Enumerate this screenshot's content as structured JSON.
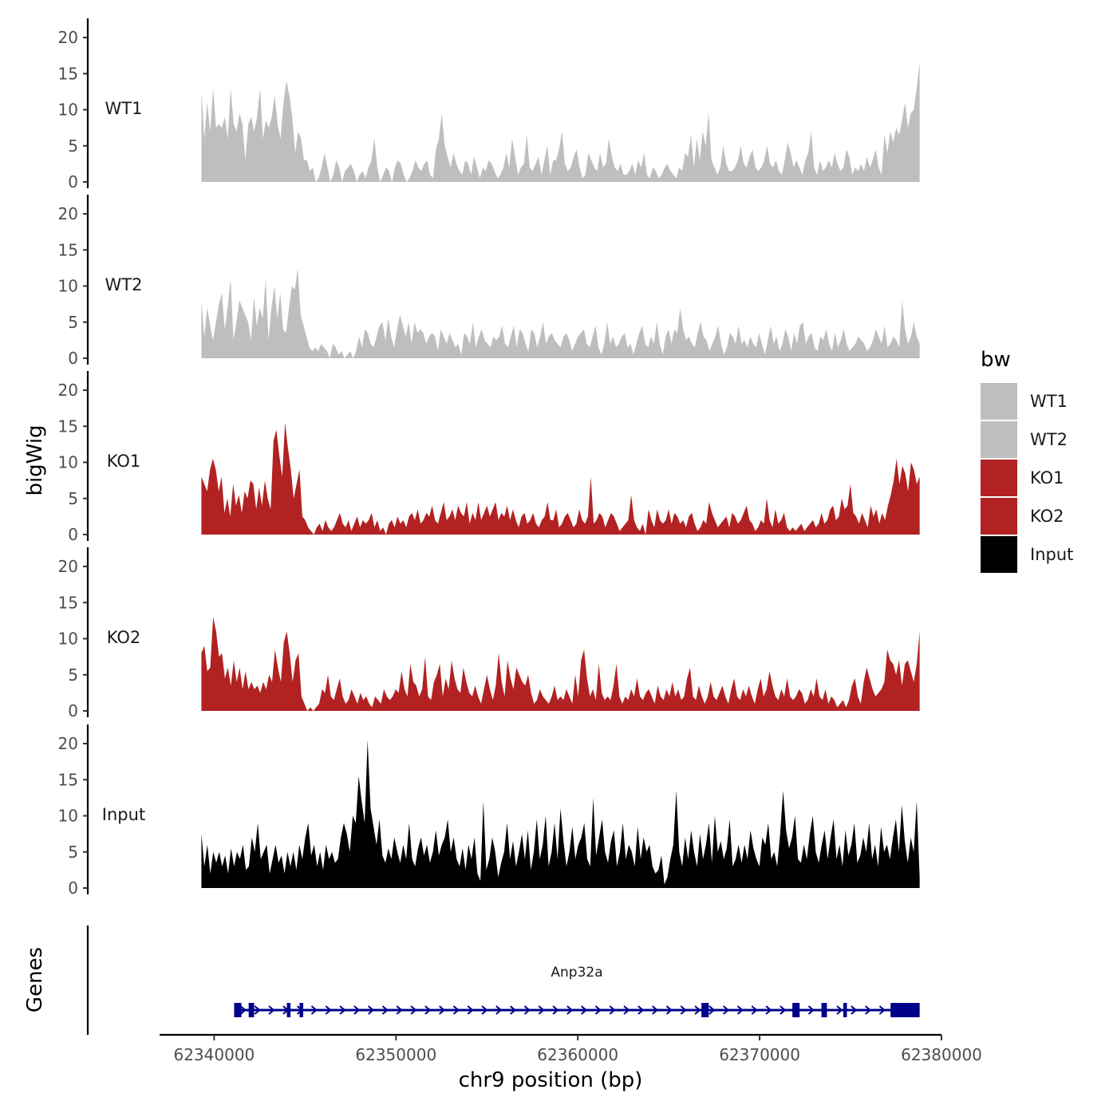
{
  "chart_data": {
    "type": "area",
    "chromosome": "chr9",
    "xlabel": "chr9 position (bp)",
    "ylabel": "bigWig",
    "genes_label": "Genes",
    "xlim": [
      62337000,
      62380000
    ],
    "data_range": [
      62339300,
      62378800
    ],
    "ylim": [
      0,
      21
    ],
    "xticks": [
      62340000,
      62350000,
      62360000,
      62370000,
      62380000
    ],
    "xtick_labels": [
      "62340000",
      "62350000",
      "62360000",
      "62370000",
      "62380000"
    ],
    "yticks": [
      0,
      5,
      10,
      15,
      20
    ],
    "ytick_labels": [
      "0",
      "5",
      "10",
      "15",
      "20"
    ],
    "legend": {
      "title": "bw",
      "entries": [
        {
          "label": "WT1",
          "color": "#bebebe"
        },
        {
          "label": "WT2",
          "color": "#bebebe"
        },
        {
          "label": "KO1",
          "color": "#b22222"
        },
        {
          "label": "KO2",
          "color": "#b22222"
        },
        {
          "label": "Input",
          "color": "#000000"
        }
      ]
    },
    "series": [
      {
        "name": "WT1",
        "color": "#bebebe",
        "values": [
          12.5,
          6,
          11,
          7,
          13,
          7.5,
          8,
          7.5,
          9,
          6,
          13,
          8,
          7,
          9.5,
          8,
          3,
          8,
          9,
          7,
          9,
          13,
          6,
          8.5,
          7.5,
          9,
          12,
          8,
          6,
          11,
          14,
          12,
          9,
          4,
          7,
          6,
          3,
          3,
          1.5,
          2,
          0,
          0.5,
          2,
          4,
          2,
          0,
          1,
          3,
          2,
          0,
          1.5,
          2,
          2.5,
          1.5,
          0,
          1,
          1.5,
          0.5,
          2,
          3,
          6,
          2,
          0,
          1,
          2,
          1.5,
          0,
          2,
          3,
          2.5,
          1,
          0,
          0.5,
          1.5,
          3,
          2,
          1.5,
          2.5,
          3,
          1,
          0.5,
          4.5,
          6,
          9.5,
          5,
          3.5,
          2,
          4,
          2.5,
          1.5,
          1,
          3,
          2.5,
          1,
          3.5,
          2,
          0.5,
          2,
          1.5,
          3,
          2.5,
          1.5,
          0.5,
          1,
          2,
          4,
          2,
          6,
          3.5,
          1,
          2,
          2.5,
          6.5,
          2,
          1.5,
          2.5,
          3.5,
          1,
          3,
          5,
          1,
          3,
          3,
          4.5,
          7,
          2.5,
          1.5,
          2,
          3.5,
          4.5,
          2,
          0.5,
          1,
          4,
          3,
          2,
          1.5,
          4,
          2,
          2.5,
          6,
          3.5,
          2,
          1.5,
          2.5,
          1,
          1,
          1.5,
          2.5,
          1,
          3,
          2,
          4,
          1,
          0.5,
          2,
          1.5,
          0.5,
          1,
          2,
          2.5,
          1.5,
          1,
          0.5,
          2,
          1.5,
          4,
          3.5,
          6.5,
          2,
          6,
          3,
          7,
          5,
          9.5,
          3,
          2,
          1,
          2,
          5,
          2.5,
          1.5,
          1.5,
          2,
          3,
          5,
          2.5,
          2,
          3.5,
          4.5,
          2,
          1.5,
          2,
          3,
          5,
          2.5,
          2,
          3,
          1.5,
          1,
          3,
          5.5,
          4,
          2,
          3,
          2,
          1,
          3,
          4,
          7,
          2,
          1,
          3,
          1.5,
          2,
          3,
          2,
          4,
          2.5,
          1.5,
          2,
          4.5,
          3.5,
          1,
          2,
          1.5,
          2.5,
          1.5,
          3.5,
          2,
          3,
          4.5,
          2,
          1,
          6.5,
          4,
          7,
          5.5,
          7.5,
          6.5,
          8.5,
          11,
          7.5,
          9.5,
          10,
          13,
          16.5
        ]
      },
      {
        "name": "WT2",
        "color": "#bebebe",
        "values": [
          8,
          3,
          7,
          4.5,
          2.5,
          5,
          7.5,
          9,
          4,
          7,
          11,
          2.5,
          5,
          8,
          7,
          6,
          5,
          2.5,
          8.5,
          4.5,
          7,
          5.5,
          11,
          2.5,
          7,
          10,
          5.5,
          9,
          4,
          3.5,
          7,
          10,
          9.5,
          12.5,
          6,
          4.5,
          3,
          1.5,
          1,
          1.5,
          1,
          2,
          1.5,
          1,
          0,
          2,
          1.5,
          0.5,
          1,
          0,
          0.5,
          1,
          0,
          1,
          3,
          1.5,
          4,
          3.5,
          2,
          1.5,
          3,
          4.5,
          5,
          2.5,
          5.5,
          3,
          1.5,
          4,
          6,
          4.5,
          3,
          5,
          2,
          5,
          3.5,
          4,
          3.5,
          2,
          3,
          3.5,
          3,
          1,
          4,
          3,
          2,
          3.5,
          2.5,
          1.5,
          2,
          0.5,
          3.5,
          3,
          2,
          5,
          1.5,
          3,
          4,
          2.5,
          2,
          1.5,
          3,
          2.5,
          3,
          4.5,
          2,
          1.5,
          3,
          4.5,
          1.5,
          4,
          3.5,
          2,
          1,
          4,
          3.5,
          1.5,
          3,
          5,
          2,
          3,
          3.5,
          2.5,
          2,
          1.5,
          3,
          3.5,
          2.5,
          1,
          2,
          3,
          3.5,
          4,
          2,
          1.5,
          3,
          4.5,
          1.5,
          0.5,
          2,
          5,
          2,
          3,
          1.5,
          2,
          3,
          3.5,
          1.5,
          2,
          0.5,
          2,
          3.5,
          4.5,
          2,
          1.5,
          3,
          2,
          5,
          2,
          0.5,
          3,
          4,
          2,
          4,
          3.5,
          7,
          4,
          2.5,
          3,
          2,
          1.5,
          3.5,
          5,
          3,
          2.5,
          1,
          2,
          3,
          4.5,
          2,
          0.5,
          1.5,
          3.5,
          3,
          2,
          4.5,
          2,
          2.5,
          1.5,
          3,
          2,
          1.5,
          3.5,
          2,
          0.5,
          2.5,
          4.5,
          2,
          3,
          1,
          2,
          4,
          3,
          1,
          3.5,
          2,
          4.5,
          5,
          2,
          3,
          3.5,
          1.5,
          1,
          3,
          2.5,
          4,
          2,
          1,
          3.5,
          1.5,
          2.5,
          4,
          2,
          1,
          1.5,
          2,
          3,
          2.5,
          2,
          1,
          1.5,
          2.5,
          4,
          3,
          2,
          4.5,
          1.5,
          2,
          3,
          2.5,
          1.5,
          8,
          4,
          2,
          3,
          5,
          3,
          2
        ]
      },
      {
        "name": "KO1",
        "color": "#b22222",
        "values": [
          8,
          7,
          6,
          9,
          10.5,
          9,
          6,
          8,
          3,
          5,
          2.5,
          7,
          4,
          5.5,
          3,
          6,
          5,
          7.5,
          7,
          3.5,
          6.5,
          4,
          7.5,
          5,
          3.5,
          13,
          14.5,
          11,
          8,
          15.5,
          12,
          9,
          5,
          7,
          9,
          2.5,
          2,
          1,
          0.5,
          0,
          1,
          1.5,
          0.5,
          2,
          1,
          0.5,
          1,
          2,
          3,
          1.5,
          1,
          2,
          0.5,
          1.5,
          2.5,
          1,
          2,
          1.5,
          2,
          3,
          1,
          2,
          0.5,
          1,
          0,
          1.5,
          2,
          1,
          2.5,
          1.5,
          2,
          1,
          2.5,
          3,
          2,
          3.5,
          1.5,
          2,
          3,
          2.5,
          4,
          2,
          1.5,
          3,
          4.5,
          2,
          2.5,
          3.5,
          2,
          4,
          3,
          2.5,
          4.5,
          1.5,
          3,
          2,
          4.5,
          2,
          3,
          4,
          2.5,
          3.5,
          4.5,
          2,
          3,
          2.5,
          4,
          2,
          3.5,
          2,
          1,
          2.5,
          3,
          1.5,
          2,
          3,
          1.5,
          1,
          2,
          2.5,
          4.5,
          2,
          2,
          3.5,
          1,
          1.5,
          2.5,
          3,
          2,
          1,
          1.5,
          3.5,
          2,
          1.5,
          2.5,
          8,
          1.5,
          2,
          3,
          2.5,
          1,
          2,
          3,
          2.5,
          1.5,
          0.5,
          1,
          1.5,
          2,
          5.5,
          2,
          1,
          0.5,
          1.5,
          0,
          3.5,
          2,
          1,
          3.5,
          2,
          1.5,
          2,
          3.5,
          1.5,
          3,
          2.5,
          1.5,
          2,
          1,
          2.5,
          3,
          1.5,
          0.5,
          1,
          2,
          1.5,
          4.5,
          3,
          2,
          1,
          1.5,
          2,
          2.5,
          1,
          3,
          2.5,
          1.5,
          2,
          3,
          4,
          2,
          1.5,
          0.5,
          1,
          2,
          1.5,
          5,
          2,
          1,
          3.5,
          1.5,
          2,
          3,
          1,
          0.5,
          1,
          0.5,
          1,
          1.5,
          0.5,
          1,
          1.5,
          2,
          1,
          1.5,
          3,
          1.5,
          2,
          3.5,
          4,
          2,
          2.5,
          5,
          3.5,
          4,
          7,
          3,
          2.5,
          1.5,
          3,
          2,
          1,
          4,
          2.5,
          3.5,
          1.5,
          3,
          2,
          4,
          5.5,
          7.5,
          10.5,
          7,
          9.5,
          8.5,
          6,
          10,
          9,
          7,
          8
        ]
      },
      {
        "name": "KO2",
        "color": "#b22222",
        "values": [
          8,
          9,
          5.5,
          6,
          13,
          11,
          7.5,
          8,
          4.5,
          6,
          3.5,
          7,
          4,
          6,
          3,
          5.5,
          3,
          4,
          3,
          3.5,
          2.5,
          4,
          3,
          5,
          4,
          8.5,
          6,
          4,
          9.5,
          11,
          8,
          4,
          7,
          8,
          2,
          1,
          0,
          0.5,
          0,
          0.5,
          1,
          3,
          2.5,
          5,
          2,
          1.5,
          3,
          4.5,
          2,
          1,
          1.5,
          3,
          2,
          1,
          2.5,
          1.5,
          2,
          1,
          0.5,
          2,
          1.5,
          1,
          3,
          2,
          1.5,
          2,
          3,
          2.5,
          5.5,
          3,
          2,
          6.5,
          4,
          3.5,
          2,
          3,
          7.5,
          2,
          1.5,
          4,
          5,
          6.5,
          2,
          4.5,
          3,
          7,
          4.5,
          3,
          2.5,
          6,
          4,
          2.5,
          2,
          3.5,
          2,
          1,
          3,
          5,
          3,
          1.5,
          3.5,
          8,
          4,
          2,
          7,
          4.5,
          3,
          6,
          5,
          4,
          3.5,
          5,
          2.5,
          1,
          1.5,
          3,
          2,
          1.5,
          1,
          2,
          3.5,
          1.5,
          2,
          1.5,
          3,
          2,
          1,
          5,
          2,
          7,
          8.5,
          4.5,
          2,
          3,
          1.5,
          6.5,
          2.5,
          1.5,
          2,
          1.5,
          3.5,
          6.5,
          2,
          1,
          2,
          1.5,
          3,
          2,
          4.5,
          2,
          1.5,
          2.5,
          3,
          2,
          1,
          3.5,
          2,
          1.5,
          3,
          2,
          4,
          2,
          3,
          1.5,
          2,
          4.5,
          6,
          2,
          1.5,
          3.5,
          2,
          1,
          2,
          4,
          2,
          1.5,
          2.5,
          3.5,
          2,
          1,
          3,
          4.5,
          2,
          1.5,
          3,
          2,
          3.5,
          2,
          1,
          3,
          4.5,
          2,
          3,
          5.5,
          3.5,
          2,
          1.5,
          3,
          2,
          4.5,
          2,
          1.5,
          2,
          3,
          2.5,
          1,
          1.5,
          3,
          2,
          4.5,
          2,
          1.5,
          3,
          1,
          2,
          1.5,
          0.5,
          1,
          1.5,
          0.5,
          1.5,
          3.5,
          4.5,
          2,
          1,
          4,
          6,
          4.5,
          3,
          2,
          2.5,
          3,
          4,
          8.5,
          7,
          6.5,
          5,
          7,
          3.5,
          6.5,
          7,
          5.5,
          4,
          6.5,
          11
        ]
      },
      {
        "name": "Input",
        "color": "#000000",
        "values": [
          7.5,
          3,
          6,
          2,
          5,
          3.5,
          5,
          3,
          4.5,
          2,
          5.5,
          3,
          5,
          4,
          6,
          2.5,
          3,
          7,
          5,
          9,
          4,
          5,
          6,
          2,
          4,
          6,
          3.5,
          4.5,
          2,
          5,
          3,
          5,
          2.5,
          6,
          4,
          7,
          9,
          4.5,
          6,
          3,
          5,
          2.5,
          6,
          4,
          5,
          3.5,
          4,
          7,
          9,
          7.5,
          5,
          10,
          9,
          15.5,
          12,
          9,
          20.5,
          11,
          8.5,
          6,
          9.5,
          4.5,
          3.5,
          5.5,
          4,
          7,
          5,
          3.5,
          6,
          4,
          9,
          4,
          3,
          5.5,
          7,
          4.5,
          6,
          3.5,
          5,
          8,
          4.5,
          6,
          7,
          9.5,
          5,
          7,
          4,
          3,
          5.5,
          2.5,
          6,
          4,
          7,
          2,
          1,
          12,
          2.5,
          4,
          7,
          5,
          1.5,
          3.5,
          5,
          9,
          4,
          6.5,
          3,
          5,
          7.5,
          4,
          8,
          2.5,
          5,
          9.5,
          4,
          6,
          10,
          3,
          5,
          9,
          4,
          11,
          6.5,
          3,
          5,
          8.5,
          4,
          6,
          7,
          9,
          4,
          3,
          12.5,
          4.5,
          7,
          9.5,
          5,
          3.5,
          6.5,
          8,
          3,
          5,
          9,
          4,
          6,
          5,
          3,
          8.5,
          4,
          7,
          5,
          6,
          3,
          2,
          2.5,
          4.5,
          0.5,
          1.5,
          4,
          6,
          13.5,
          5,
          3,
          7,
          4,
          8,
          5,
          3,
          7.5,
          4,
          6,
          9,
          3.5,
          10,
          5,
          6.5,
          4,
          5.5,
          9.5,
          3,
          4,
          6,
          3.5,
          6,
          4,
          8,
          5.5,
          4,
          3,
          7,
          6,
          9,
          4,
          5,
          3,
          7.5,
          13.5,
          8,
          5.5,
          7,
          10,
          4,
          3.5,
          6,
          4,
          7.5,
          10,
          5,
          3.5,
          6,
          8,
          4,
          7,
          9.5,
          4,
          6,
          3,
          8,
          4.5,
          6,
          9,
          3.5,
          4.5,
          7,
          5,
          9,
          4,
          6,
          3,
          8.5,
          5,
          6,
          4,
          7,
          9.5,
          5,
          11.5,
          6.5,
          3.5,
          7,
          5,
          12,
          1.5
        ]
      }
    ],
    "gene": {
      "name": "Anp32a",
      "strand": "+",
      "start": 62341100,
      "end": 62378800,
      "exons": [
        [
          62341100,
          62341500
        ],
        [
          62341900,
          62342200
        ],
        [
          62344000,
          62344200
        ],
        [
          62344700,
          62344900
        ],
        [
          62366800,
          62367200
        ],
        [
          62371800,
          62372200
        ],
        [
          62373400,
          62373700
        ],
        [
          62374600,
          62374800
        ],
        [
          62377200,
          62378800
        ]
      ]
    }
  }
}
